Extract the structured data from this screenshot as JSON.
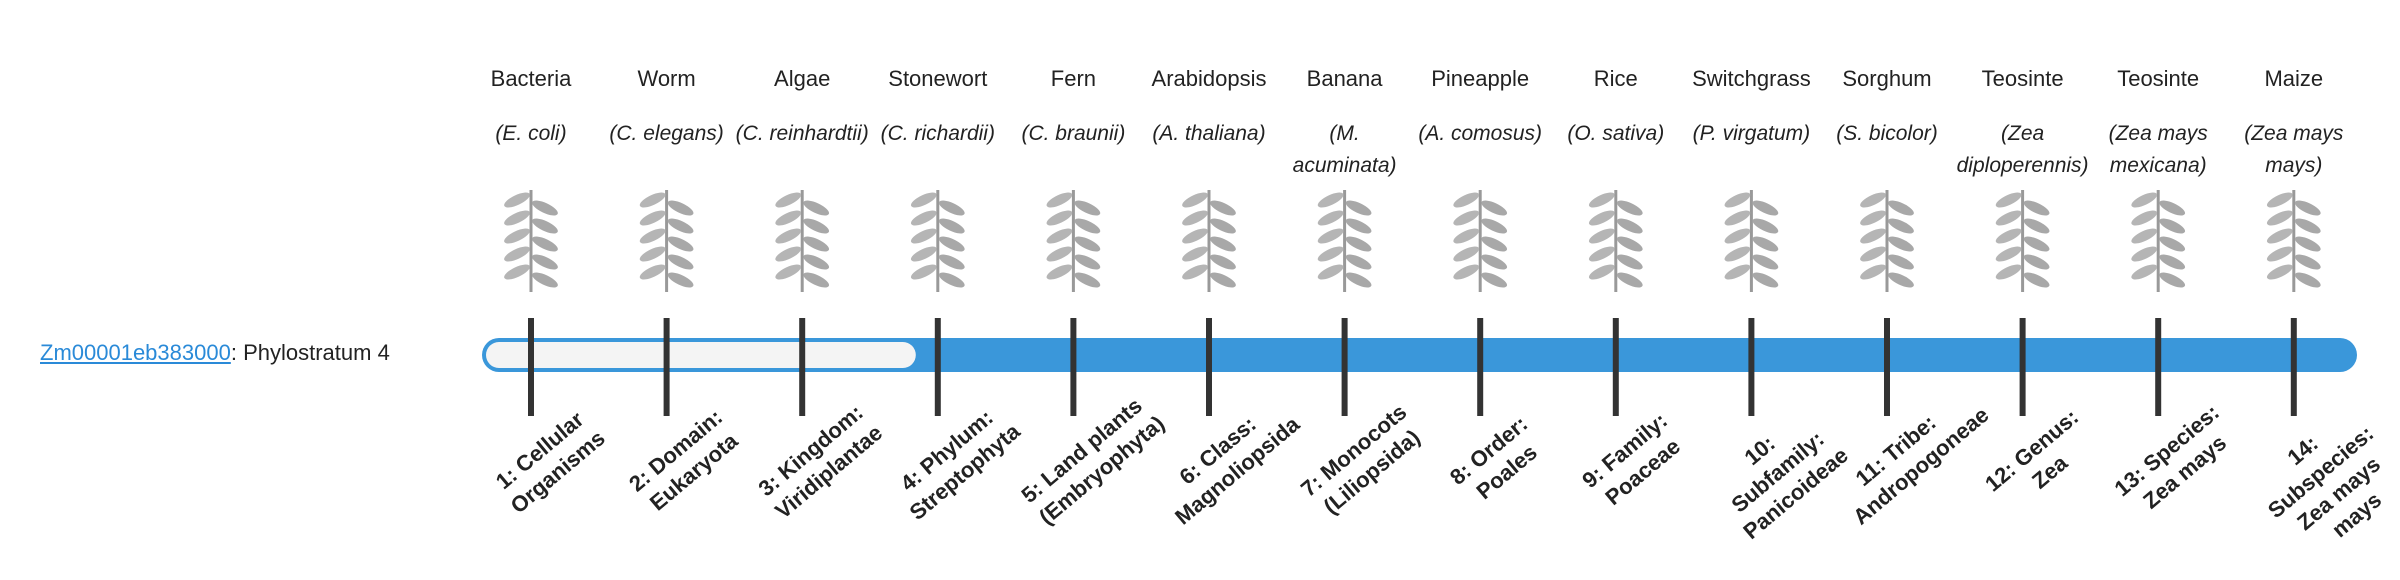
{
  "gene": {
    "id": "Zm00001eb383000",
    "separator": ":",
    "phylostratum_label": "Phylostratum",
    "phylostratum": 4
  },
  "strata": [
    {
      "name": "Bacteria",
      "species": "(E. coli)",
      "rank": "1: Cellular Organisms"
    },
    {
      "name": "Worm",
      "species": "(C. elegans)",
      "rank": "2: Domain: Eukaryota"
    },
    {
      "name": "Algae",
      "species": "(C. reinhardtii)",
      "rank": "3: Kingdom: Viridiplantae"
    },
    {
      "name": "Stonewort",
      "species": "(C. richardii)",
      "rank": "4: Phylum: Streptophyta"
    },
    {
      "name": "Fern",
      "species": "(C. braunii)",
      "rank": "5: Land plants (Embryophyta)"
    },
    {
      "name": "Arabidopsis",
      "species": "(A. thaliana)",
      "rank": "6: Class: Magnoliopsida"
    },
    {
      "name": "Banana",
      "species": "(M. acuminata)",
      "rank": "7: Monocots (Liliopsida)"
    },
    {
      "name": "Pineapple",
      "species": "(A. comosus)",
      "rank": "8: Order: Poales"
    },
    {
      "name": "Rice",
      "species": "(O. sativa)",
      "rank": "9: Family: Poaceae"
    },
    {
      "name": "Switchgrass",
      "species": "(P. virgatum)",
      "rank": "10: Subfamily: Panicoideae"
    },
    {
      "name": "Sorghum",
      "species": "(S. bicolor)",
      "rank": "11: Tribe: Andropogoneae"
    },
    {
      "name": "Teosinte",
      "species": "(Zea diploperennis)",
      "rank": "12: Genus: Zea"
    },
    {
      "name": "Teosinte",
      "species": "(Zea mays mexicana)",
      "rank": "13: Species: Zea mays"
    },
    {
      "name": "Maize",
      "species": "(Zea mays mays)",
      "rank": "14: Subspecies: Zea mays mays"
    }
  ]
}
